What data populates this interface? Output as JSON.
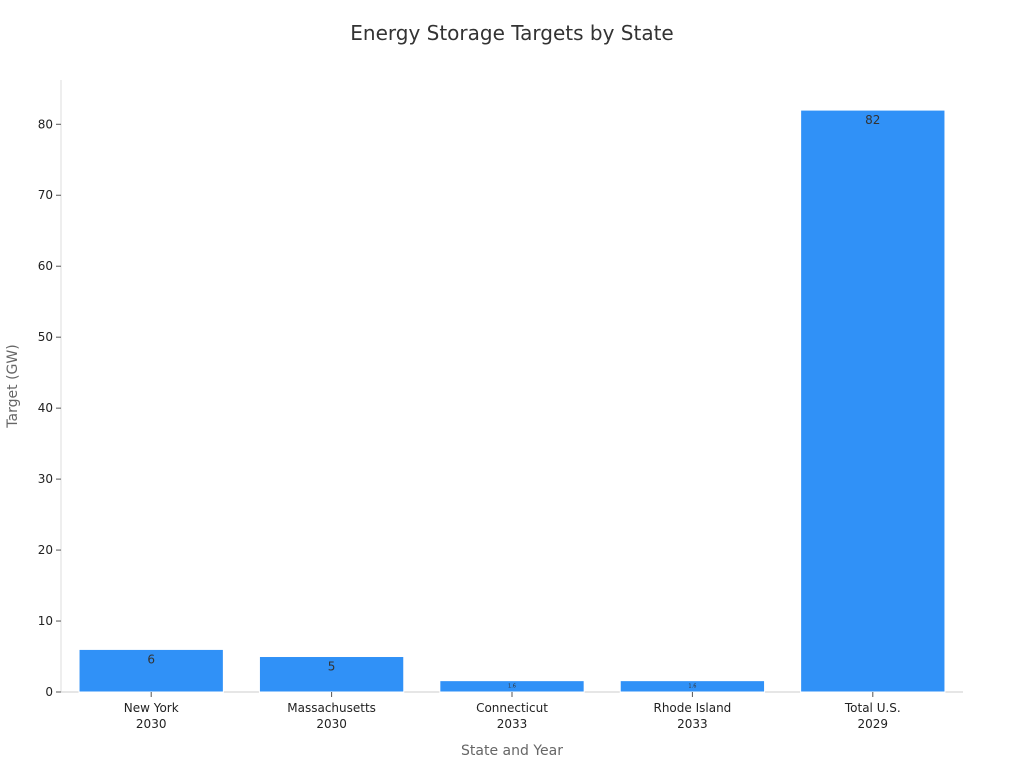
{
  "chart_data": {
    "type": "bar",
    "title": "Energy Storage Targets by State",
    "xlabel": "State and Year",
    "ylabel": "Target (GW)",
    "categories": [
      [
        "New York",
        "2030"
      ],
      [
        "Massachusetts",
        "2030"
      ],
      [
        "Connecticut",
        "2033"
      ],
      [
        "Rhode Island",
        "2033"
      ],
      [
        "Total U.S.",
        "2029"
      ]
    ],
    "values": [
      6,
      5,
      1.6,
      1.6,
      82
    ],
    "data_labels": [
      "6",
      "5",
      "1.6",
      "1.6",
      "82"
    ],
    "ylim": [
      0,
      86
    ],
    "yticks": [
      0,
      10,
      20,
      30,
      40,
      50,
      60,
      70,
      80
    ],
    "bar_color": "#3091f7",
    "bar_edge_color": "#ffffff",
    "grid": false,
    "legend": "none"
  }
}
